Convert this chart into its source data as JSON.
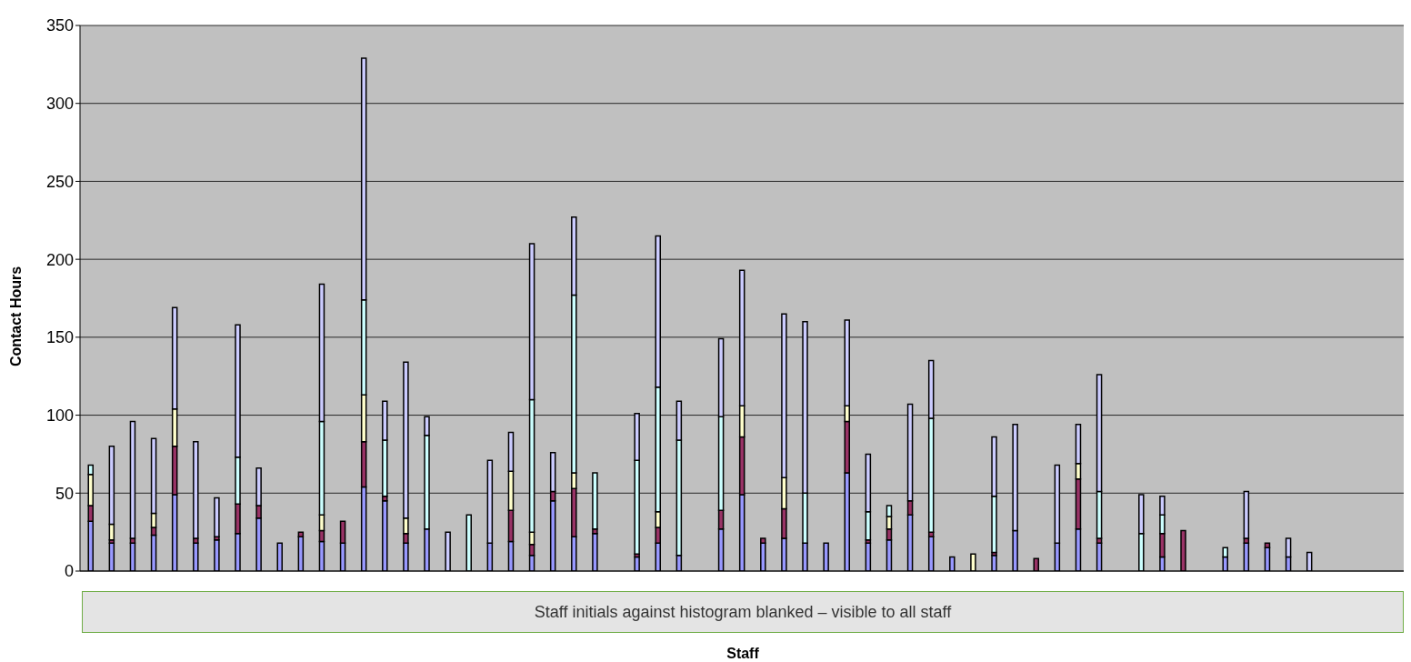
{
  "chart_data": {
    "type": "bar",
    "stacked": true,
    "xlabel": "Staff",
    "ylabel": "Contact Hours",
    "annotations": [
      "Staff initials against histogram blanked – visible to all staff"
    ],
    "categories": [
      null,
      null,
      null,
      null,
      null,
      null,
      null,
      null,
      null,
      null,
      null,
      null,
      null,
      null,
      null,
      null,
      null,
      null,
      null,
      null,
      null,
      null,
      null,
      null,
      null,
      null,
      null,
      null,
      null,
      null,
      null,
      null,
      null,
      null,
      null,
      null,
      null,
      null,
      null,
      null,
      null,
      null,
      null,
      null,
      null,
      null,
      null,
      null,
      null,
      null,
      null,
      null,
      null,
      null,
      null,
      null,
      null,
      null,
      null,
      null,
      null,
      null,
      null
    ],
    "series": [
      {
        "color": "#9999ff",
        "values": [
          32,
          18,
          18,
          23,
          49,
          18,
          20,
          24,
          34,
          18,
          22,
          19,
          18,
          54,
          45,
          18,
          27,
          null,
          null,
          18,
          19,
          10,
          45,
          22,
          24,
          null,
          9,
          18,
          10,
          null,
          27,
          49,
          18,
          21,
          18,
          18,
          63,
          18,
          20,
          36,
          22,
          9,
          null,
          10,
          26,
          null,
          18,
          27,
          18,
          null,
          null,
          9,
          null,
          null,
          9,
          18,
          15,
          9,
          null,
          null,
          null,
          null,
          null
        ]
      },
      {
        "color": "#993366",
        "values": [
          10,
          2,
          3,
          5,
          31,
          3,
          2,
          19,
          8,
          null,
          3,
          7,
          14,
          29,
          3,
          6,
          null,
          null,
          null,
          null,
          20,
          7,
          6,
          31,
          3,
          null,
          2,
          10,
          null,
          null,
          12,
          37,
          3,
          19,
          null,
          null,
          33,
          2,
          7,
          9,
          3,
          null,
          null,
          2,
          null,
          8,
          null,
          32,
          3,
          null,
          null,
          15,
          26,
          null,
          null,
          3,
          3,
          null,
          null,
          null,
          null,
          null,
          null
        ]
      },
      {
        "color": "#ffffcc",
        "values": [
          20,
          10,
          null,
          9,
          24,
          null,
          null,
          null,
          null,
          null,
          null,
          10,
          null,
          30,
          null,
          10,
          null,
          null,
          null,
          null,
          25,
          8,
          null,
          10,
          null,
          null,
          null,
          10,
          null,
          null,
          null,
          20,
          null,
          20,
          null,
          null,
          10,
          null,
          8,
          null,
          null,
          null,
          11,
          null,
          null,
          null,
          null,
          10,
          null,
          null,
          null,
          null,
          null,
          null,
          null,
          null,
          null,
          null,
          null,
          null,
          null,
          null,
          null
        ]
      },
      {
        "color": "#ccffff",
        "values": [
          6,
          null,
          null,
          null,
          null,
          null,
          null,
          30,
          null,
          null,
          null,
          60,
          null,
          61,
          36,
          null,
          60,
          null,
          36,
          null,
          null,
          85,
          null,
          114,
          36,
          null,
          60,
          80,
          74,
          null,
          60,
          null,
          null,
          null,
          32,
          null,
          null,
          18,
          7,
          null,
          73,
          null,
          null,
          36,
          null,
          null,
          null,
          null,
          30,
          null,
          24,
          12,
          null,
          null,
          6,
          null,
          null,
          null,
          null,
          null,
          null,
          null,
          null
        ]
      },
      {
        "color": "#ccccff",
        "values": [
          null,
          50,
          75,
          48,
          65,
          62,
          25,
          85,
          24,
          null,
          null,
          88,
          null,
          155,
          25,
          100,
          12,
          25,
          null,
          53,
          25,
          100,
          25,
          50,
          null,
          null,
          30,
          97,
          25,
          null,
          50,
          87,
          null,
          105,
          110,
          null,
          55,
          37,
          null,
          62,
          37,
          null,
          null,
          38,
          68,
          null,
          50,
          25,
          75,
          null,
          25,
          12,
          null,
          null,
          null,
          30,
          null,
          12,
          12,
          null,
          null,
          null,
          null
        ]
      }
    ],
    "ylim": [
      0,
      350
    ],
    "yticks": [
      0,
      50,
      100,
      150,
      200,
      250,
      300,
      350
    ],
    "grid": "y",
    "tick_labels": "y",
    "legend": false
  }
}
